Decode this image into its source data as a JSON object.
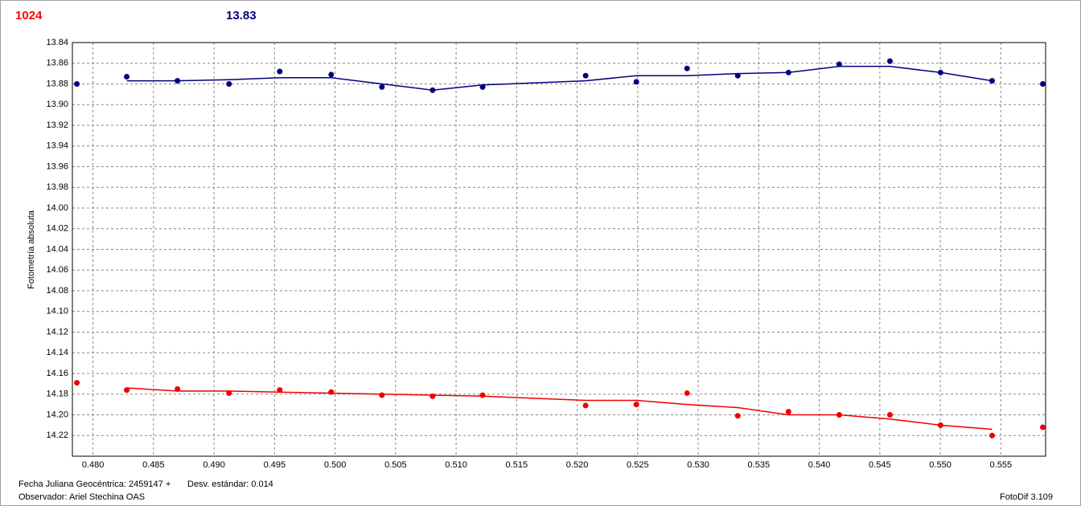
{
  "chart_data": {
    "type": "scatter",
    "header": {
      "left": "1024",
      "left_color": "#ff0000",
      "right": "13.83",
      "right_color": "#00007f"
    },
    "y_label": "Fotometría absoluta",
    "footer": {
      "date": "Fecha Juliana Geocéntrica: 2459147 +",
      "std": "Desv. estándar: 0.014",
      "observer": "Observador: Ariel Stechina OAS",
      "app": "FotoDif 3.109"
    },
    "x": [
      0.47867,
      0.48279,
      0.48698,
      0.49124,
      0.49543,
      0.49968,
      0.50387,
      0.50806,
      0.51219,
      0.5207,
      0.52489,
      0.52908,
      0.53327,
      0.53746,
      0.54165,
      0.54584,
      0.55002,
      0.55428,
      0.55847
    ],
    "series": [
      {
        "color": "#00007f",
        "style": "markers",
        "values": [
          13.88,
          13.873,
          13.877,
          13.88,
          13.868,
          13.871,
          13.883,
          13.886,
          13.883,
          13.872,
          13.878,
          13.865,
          13.872,
          13.869,
          13.861,
          13.858,
          13.869,
          13.877,
          13.88
        ]
      },
      {
        "color": "#00007f",
        "style": "line",
        "values": [
          null,
          13.877,
          13.877,
          13.876,
          13.874,
          13.874,
          13.88,
          13.886,
          13.881,
          13.877,
          13.872,
          13.872,
          13.87,
          13.869,
          13.863,
          13.863,
          13.869,
          13.877,
          null
        ]
      },
      {
        "color": "#ee0000",
        "style": "markers",
        "values": [
          14.169,
          14.176,
          14.175,
          14.179,
          14.176,
          14.178,
          14.181,
          14.182,
          14.181,
          14.191,
          14.19,
          14.179,
          14.201,
          14.197,
          14.2,
          14.2,
          14.21,
          14.22,
          14.212
        ]
      },
      {
        "color": "#ee0000",
        "style": "line",
        "values": [
          null,
          14.174,
          14.177,
          14.177,
          14.178,
          14.179,
          14.18,
          14.181,
          14.182,
          14.186,
          14.186,
          14.19,
          14.193,
          14.2,
          14.2,
          14.204,
          14.21,
          14.214,
          null
        ]
      }
    ],
    "xlim": [
      0.4783,
      0.5587
    ],
    "xticks": [
      {
        "value": 0.48,
        "label": "0.480"
      },
      0.485,
      {
        "value": 0.49,
        "label": "0.490"
      },
      0.495,
      {
        "value": 0.5,
        "label": "0.500"
      },
      0.505,
      {
        "value": 0.51,
        "label": "0.510"
      },
      0.515,
      {
        "value": 0.52,
        "label": "0.520"
      },
      0.525,
      {
        "value": 0.53,
        "label": "0.530"
      },
      0.535,
      {
        "value": 0.54,
        "label": "0.540"
      },
      0.545,
      {
        "value": 0.55,
        "label": "0.550"
      },
      0.555
    ],
    "ylim": [
      14.24,
      13.84
    ],
    "yticks": [
      13.84,
      13.86,
      13.88,
      {
        "value": 13.9,
        "label": "13.90"
      },
      13.92,
      13.94,
      13.96,
      13.98,
      {
        "value": 14.0,
        "label": "14.00"
      },
      14.02,
      14.04,
      14.06,
      14.08,
      {
        "value": 14.1,
        "label": "14.10"
      },
      14.12,
      14.14,
      14.16,
      14.18,
      {
        "value": 14.2,
        "label": "14.20"
      },
      14.22
    ],
    "grid": true
  }
}
